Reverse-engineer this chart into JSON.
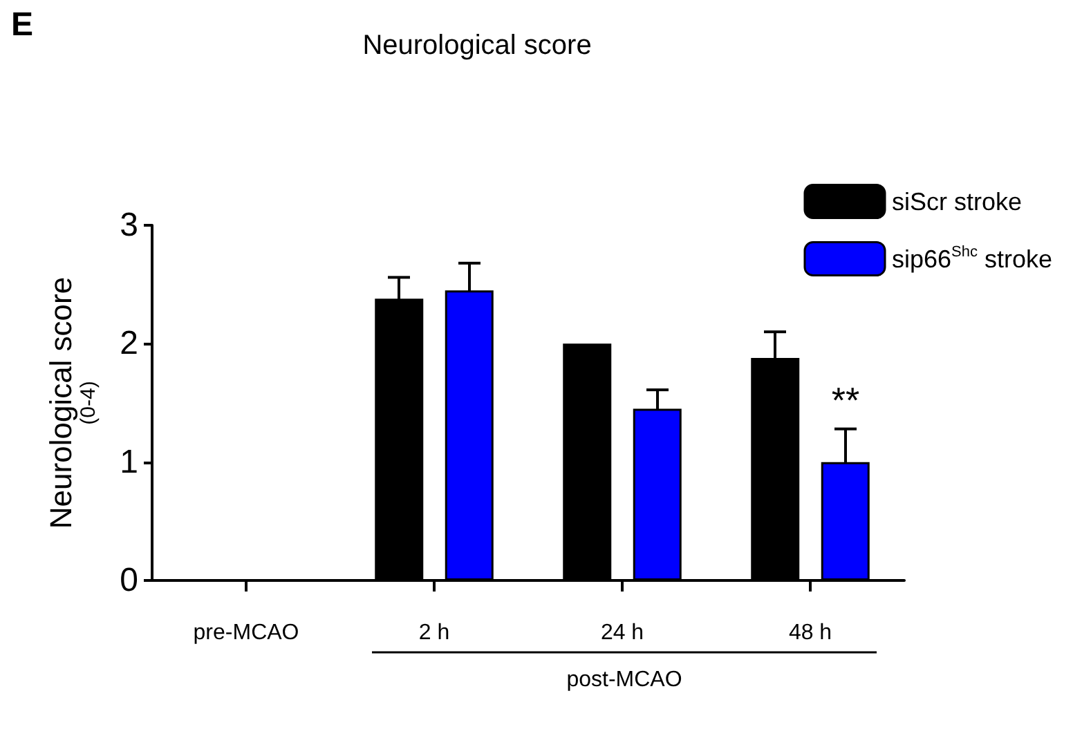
{
  "chart_data": {
    "type": "bar",
    "title": "Neurological score",
    "ylabel": "Neurological score\n(0-4)",
    "categories": [
      "pre-MCAO",
      "2 h",
      "24 h",
      "48 h"
    ],
    "series": [
      {
        "name": "siScr stroke",
        "color": "#000000",
        "values": [
          null,
          2.38,
          2.0,
          1.88
        ],
        "errors": [
          null,
          0.18,
          null,
          0.22
        ]
      },
      {
        "name": "sip66$^{Shc}$ stroke",
        "color": "#0000ff",
        "values": [
          null,
          2.45,
          1.45,
          1.0
        ],
        "errors": [
          null,
          0.23,
          0.16,
          0.28
        ]
      }
    ],
    "ylim": [
      0,
      3
    ],
    "yticks": [
      0,
      1,
      2,
      3
    ],
    "grid": false,
    "legend": "top right",
    "annotations": [
      "E",
      "**",
      "post-MCAO"
    ]
  }
}
